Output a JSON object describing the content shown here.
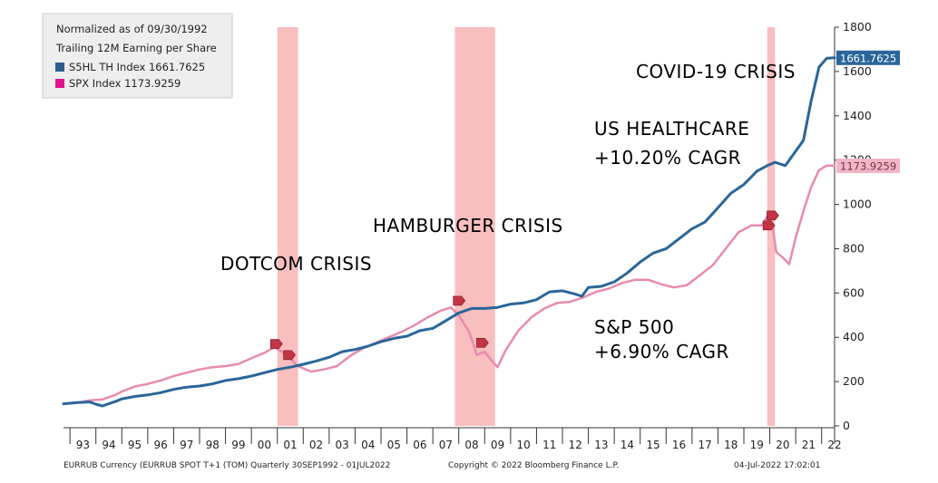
{
  "chart_data": {
    "type": "line",
    "x_unit": "year",
    "xlim": [
      1992.75,
      2022.5
    ],
    "ylim": [
      0,
      1800
    ],
    "y_ticks": [
      0,
      200,
      400,
      600,
      800,
      1000,
      1200,
      1400,
      1600,
      1800
    ],
    "x_ticks": [
      {
        "label": "93",
        "x": 1993.5
      },
      {
        "label": "94",
        "x": 1994.5
      },
      {
        "label": "95",
        "x": 1995.5
      },
      {
        "label": "96",
        "x": 1996.5
      },
      {
        "label": "97",
        "x": 1997.5
      },
      {
        "label": "98",
        "x": 1998.5
      },
      {
        "label": "99",
        "x": 1999.5
      },
      {
        "label": "00",
        "x": 2000.5
      },
      {
        "label": "01",
        "x": 2001.5
      },
      {
        "label": "02",
        "x": 2002.5
      },
      {
        "label": "03",
        "x": 2003.5
      },
      {
        "label": "04",
        "x": 2004.5
      },
      {
        "label": "05",
        "x": 2005.5
      },
      {
        "label": "06",
        "x": 2006.5
      },
      {
        "label": "07",
        "x": 2007.5
      },
      {
        "label": "08",
        "x": 2008.5
      },
      {
        "label": "09",
        "x": 2009.5
      },
      {
        "label": "10",
        "x": 2010.5
      },
      {
        "label": "11",
        "x": 2011.5
      },
      {
        "label": "12",
        "x": 2012.5
      },
      {
        "label": "13",
        "x": 2013.5
      },
      {
        "label": "14",
        "x": 2014.5
      },
      {
        "label": "15",
        "x": 2015.5
      },
      {
        "label": "16",
        "x": 2016.5
      },
      {
        "label": "17",
        "x": 2017.5
      },
      {
        "label": "18",
        "x": 2018.5
      },
      {
        "label": "19",
        "x": 2019.5
      },
      {
        "label": "20",
        "x": 2020.5
      },
      {
        "label": "21",
        "x": 2021.5
      },
      {
        "label": "22",
        "x": 2022.5
      }
    ],
    "crisis_bands": [
      {
        "name": "dotcom",
        "start": 2001.0,
        "end": 2001.8
      },
      {
        "name": "hamburger",
        "start": 2007.85,
        "end": 2009.4
      },
      {
        "name": "covid",
        "start": 2019.9,
        "end": 2020.2
      }
    ],
    "legend": {
      "title": "Normalized as of 09/30/1992",
      "subtitle": "Trailing 12M Earning per Share",
      "entries": [
        {
          "label": "S5HL TH Index 1661.7625",
          "color": "#2a5f8f"
        },
        {
          "label": "SPX Index 1173.9259",
          "color": "#e0138c"
        }
      ]
    },
    "series": [
      {
        "name": "S5HL TH Index",
        "color": "#2a6699",
        "last_label": "1661.7625",
        "points": [
          [
            1992.75,
            100
          ],
          [
            1993.25,
            105
          ],
          [
            1993.75,
            108
          ],
          [
            1994.0,
            98
          ],
          [
            1994.25,
            90
          ],
          [
            1994.75,
            110
          ],
          [
            1995.0,
            122
          ],
          [
            1995.5,
            133
          ],
          [
            1996.0,
            140
          ],
          [
            1996.5,
            150
          ],
          [
            1997.0,
            165
          ],
          [
            1997.5,
            175
          ],
          [
            1998.0,
            180
          ],
          [
            1998.5,
            190
          ],
          [
            1999.0,
            205
          ],
          [
            1999.5,
            213
          ],
          [
            2000.0,
            225
          ],
          [
            2000.5,
            240
          ],
          [
            2001.0,
            255
          ],
          [
            2001.5,
            265
          ],
          [
            2002.0,
            278
          ],
          [
            2002.5,
            293
          ],
          [
            2003.0,
            310
          ],
          [
            2003.5,
            335
          ],
          [
            2004.0,
            345
          ],
          [
            2004.5,
            360
          ],
          [
            2005.0,
            380
          ],
          [
            2005.5,
            395
          ],
          [
            2006.0,
            405
          ],
          [
            2006.5,
            430
          ],
          [
            2007.0,
            440
          ],
          [
            2007.5,
            475
          ],
          [
            2008.0,
            510
          ],
          [
            2008.5,
            530
          ],
          [
            2009.0,
            530
          ],
          [
            2009.5,
            535
          ],
          [
            2010.0,
            550
          ],
          [
            2010.5,
            555
          ],
          [
            2011.0,
            570
          ],
          [
            2011.5,
            605
          ],
          [
            2012.0,
            610
          ],
          [
            2012.5,
            595
          ],
          [
            2012.75,
            585
          ],
          [
            2013.0,
            625
          ],
          [
            2013.5,
            630
          ],
          [
            2014.0,
            650
          ],
          [
            2014.5,
            690
          ],
          [
            2015.0,
            740
          ],
          [
            2015.5,
            780
          ],
          [
            2016.0,
            800
          ],
          [
            2016.5,
            845
          ],
          [
            2017.0,
            890
          ],
          [
            2017.5,
            920
          ],
          [
            2018.0,
            985
          ],
          [
            2018.5,
            1050
          ],
          [
            2019.0,
            1090
          ],
          [
            2019.5,
            1150
          ],
          [
            2019.9,
            1175
          ],
          [
            2020.2,
            1190
          ],
          [
            2020.6,
            1175
          ],
          [
            2021.0,
            1240
          ],
          [
            2021.3,
            1290
          ],
          [
            2021.6,
            1470
          ],
          [
            2021.9,
            1620
          ],
          [
            2022.2,
            1660
          ],
          [
            2022.5,
            1661.76
          ]
        ]
      },
      {
        "name": "SPX Index",
        "color": "#e88aae",
        "last_label": "1173.9259",
        "points": [
          [
            1992.75,
            100
          ],
          [
            1993.25,
            103
          ],
          [
            1993.75,
            115
          ],
          [
            1994.25,
            120
          ],
          [
            1994.75,
            140
          ],
          [
            1995.0,
            155
          ],
          [
            1995.5,
            178
          ],
          [
            1996.0,
            190
          ],
          [
            1996.5,
            205
          ],
          [
            1997.0,
            225
          ],
          [
            1997.5,
            240
          ],
          [
            1998.0,
            255
          ],
          [
            1998.5,
            265
          ],
          [
            1999.0,
            270
          ],
          [
            1999.5,
            280
          ],
          [
            2000.0,
            305
          ],
          [
            2000.5,
            330
          ],
          [
            2000.9,
            355
          ],
          [
            2001.3,
            325
          ],
          [
            2001.8,
            270
          ],
          [
            2002.3,
            245
          ],
          [
            2002.8,
            255
          ],
          [
            2003.3,
            270
          ],
          [
            2003.8,
            315
          ],
          [
            2004.3,
            350
          ],
          [
            2004.8,
            375
          ],
          [
            2005.3,
            400
          ],
          [
            2005.8,
            425
          ],
          [
            2006.3,
            455
          ],
          [
            2006.8,
            490
          ],
          [
            2007.3,
            520
          ],
          [
            2007.7,
            535
          ],
          [
            2008.0,
            500
          ],
          [
            2008.4,
            425
          ],
          [
            2008.7,
            320
          ],
          [
            2009.0,
            335
          ],
          [
            2009.3,
            290
          ],
          [
            2009.5,
            265
          ],
          [
            2009.8,
            340
          ],
          [
            2010.3,
            430
          ],
          [
            2010.8,
            490
          ],
          [
            2011.3,
            530
          ],
          [
            2011.8,
            555
          ],
          [
            2012.3,
            560
          ],
          [
            2012.8,
            580
          ],
          [
            2013.3,
            605
          ],
          [
            2013.8,
            620
          ],
          [
            2014.3,
            645
          ],
          [
            2014.8,
            660
          ],
          [
            2015.3,
            660
          ],
          [
            2015.8,
            640
          ],
          [
            2016.3,
            625
          ],
          [
            2016.8,
            635
          ],
          [
            2017.3,
            680
          ],
          [
            2017.8,
            725
          ],
          [
            2018.3,
            800
          ],
          [
            2018.8,
            875
          ],
          [
            2019.3,
            905
          ],
          [
            2019.7,
            905
          ],
          [
            2019.9,
            945
          ],
          [
            2020.1,
            910
          ],
          [
            2020.25,
            785
          ],
          [
            2020.5,
            760
          ],
          [
            2020.75,
            730
          ],
          [
            2021.0,
            850
          ],
          [
            2021.3,
            970
          ],
          [
            2021.6,
            1080
          ],
          [
            2021.9,
            1155
          ],
          [
            2022.2,
            1175
          ],
          [
            2022.5,
            1173.93
          ]
        ]
      }
    ],
    "markers": [
      {
        "x": 2000.95,
        "y": 370,
        "color": "#c23446"
      },
      {
        "x": 2001.45,
        "y": 320,
        "color": "#c23446"
      },
      {
        "x": 2008.0,
        "y": 565,
        "color": "#c23446"
      },
      {
        "x": 2008.9,
        "y": 375,
        "color": "#c23446"
      },
      {
        "x": 2020.1,
        "y": 950,
        "color": "#c23446"
      },
      {
        "x": 2019.95,
        "y": 905,
        "color": "#c23446"
      }
    ],
    "annotations": [
      {
        "id": "dotcom",
        "text": "DOTCOM CRISIS",
        "color": "#d02b35"
      },
      {
        "id": "hamburger",
        "text": "HAMBURGER CRISIS",
        "color": "#d02b35"
      },
      {
        "id": "covid",
        "text": "COVID-19 CRISIS",
        "color": "#d02b35"
      },
      {
        "id": "healthcare_1",
        "text": "US HEALTHCARE",
        "color": "#24447a"
      },
      {
        "id": "healthcare_2",
        "text": "+10.20% CAGR",
        "color": "#24447a"
      },
      {
        "id": "sp500_1",
        "text": "S&P 500",
        "color": "#e0138c"
      },
      {
        "id": "sp500_2",
        "text": "+6.90% CAGR",
        "color": "#e0138c"
      }
    ],
    "footer": {
      "left": "EURRUB Currency (EURRUB SPOT T+1 (TOM) Quarterly 30SEP1992 - 01JUL2022",
      "center": "Copyright © 2022 Bloomberg Finance L.P.",
      "right": "04-Jul-2022 17:02:01"
    }
  }
}
